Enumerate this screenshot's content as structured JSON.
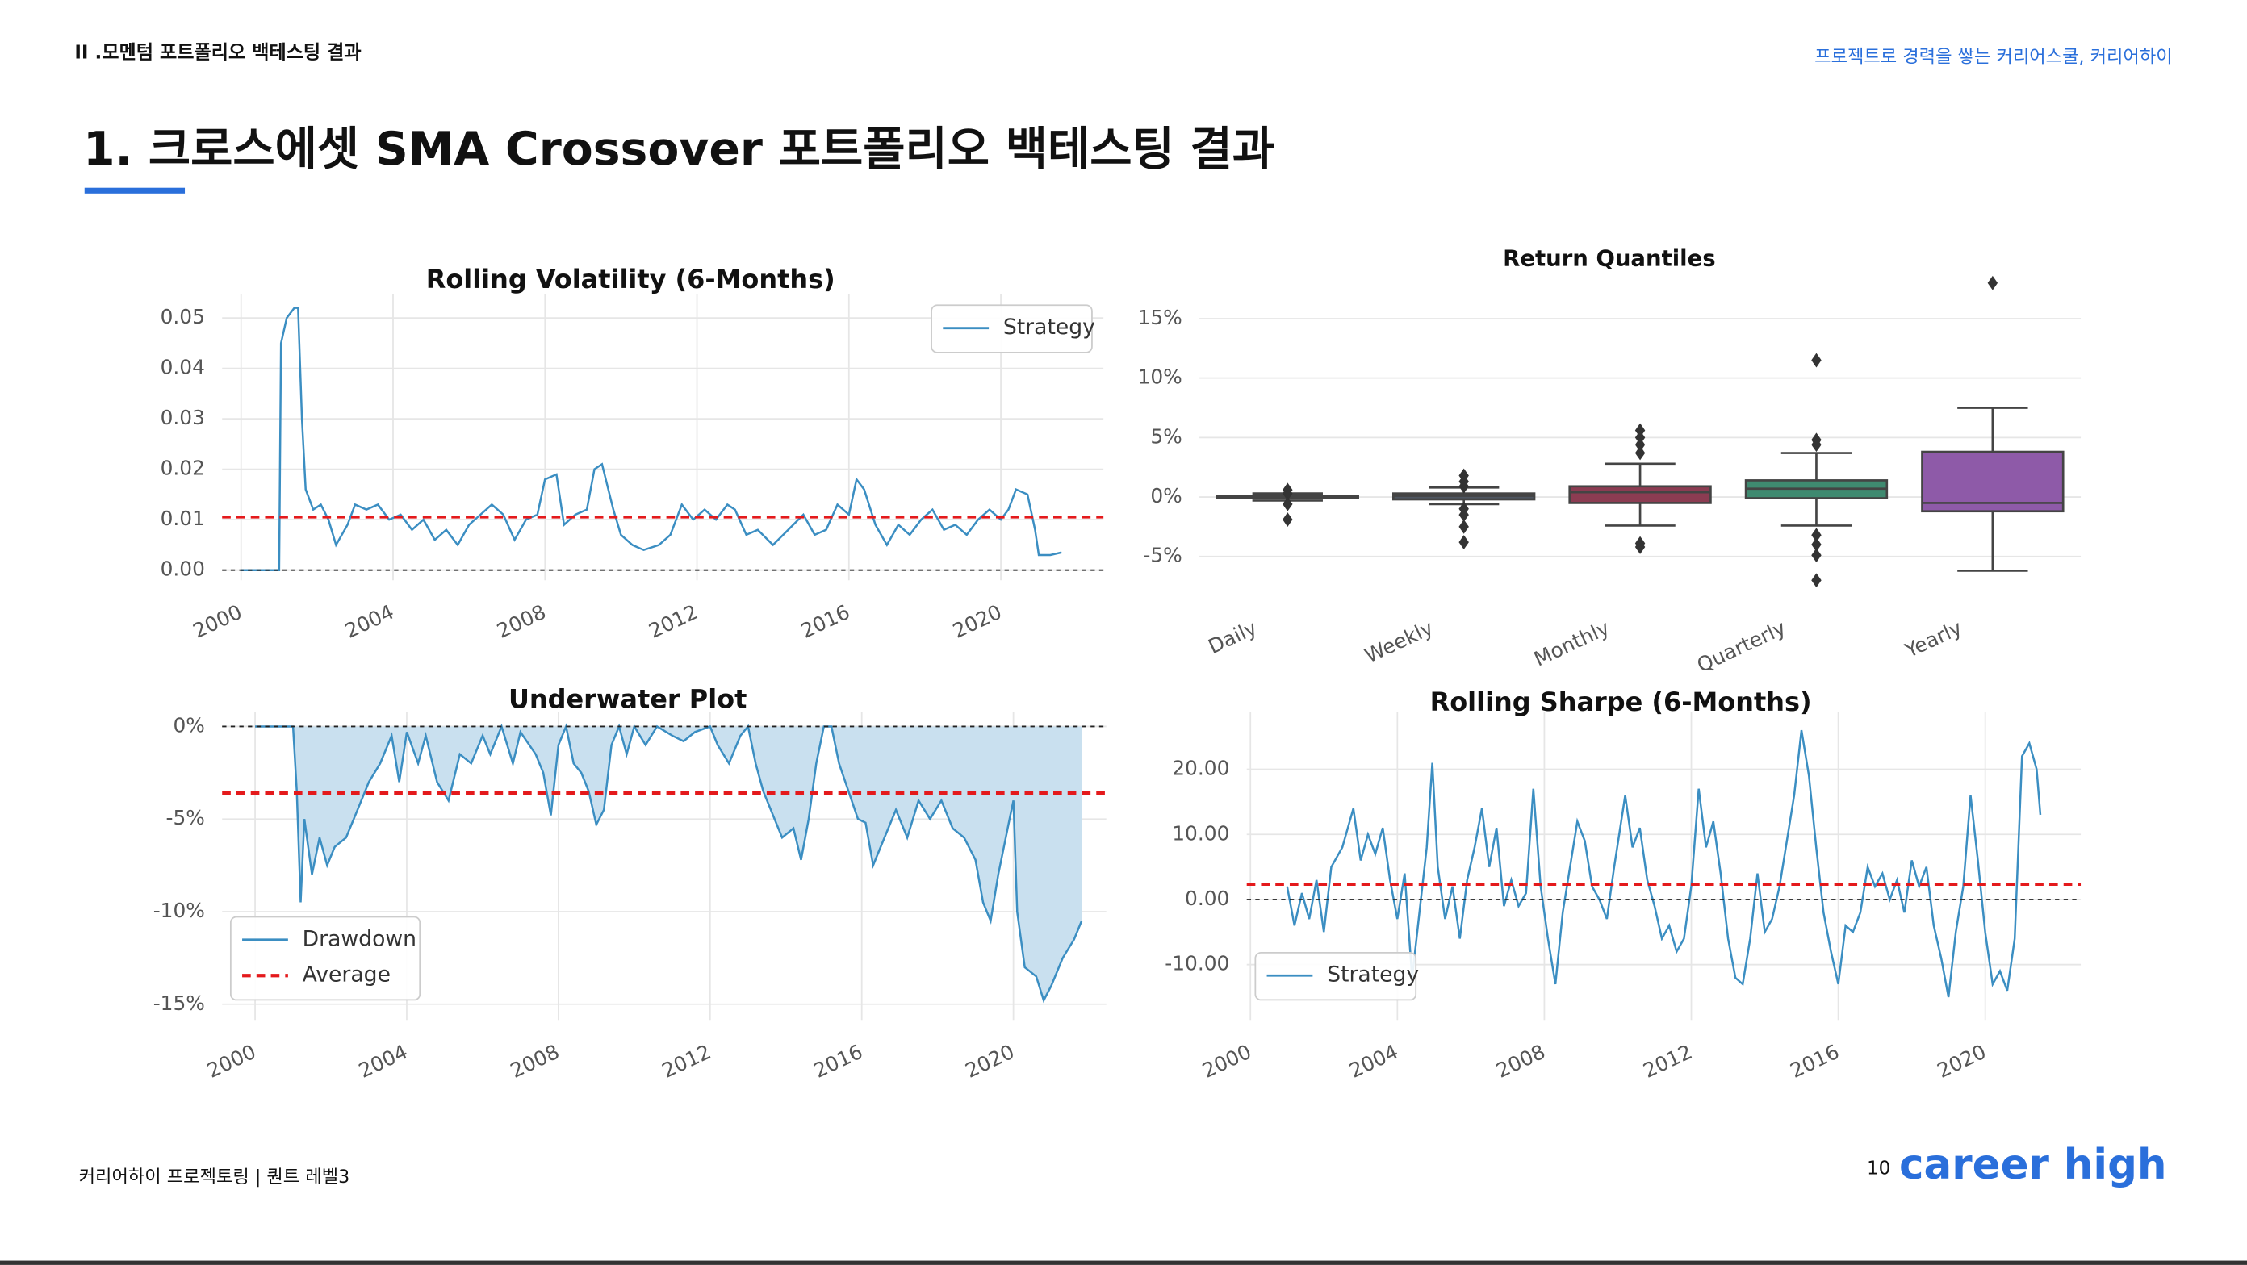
{
  "header": {
    "section": "II .모멘텀 포트폴리오 백테스팅 결과",
    "tagline": "프로젝트로 경력을 쌓는 커리어스쿨, 커리어하이",
    "title": "1. 크로스에셋 SMA Crossover 포트폴리오 백테스팅 결과"
  },
  "footer": {
    "text": "커리어하이 프로젝토링  |  퀀트 레벨3",
    "page": "10",
    "logo": "career high"
  },
  "chart_data": [
    {
      "type": "line",
      "title": "Rolling Volatility (6-Months)",
      "xlim": [
        1999.5,
        2022.7
      ],
      "xticks": [
        2000,
        2004,
        2008,
        2012,
        2016,
        2020
      ],
      "ylim": [
        -0.002,
        0.0548
      ],
      "yticks": [
        {
          "value": 0,
          "label": "0.00"
        },
        0.01,
        0.02,
        0.03,
        0.04,
        0.05
      ],
      "grid": true,
      "legend": "upper right",
      "x": [
        2000.0,
        2001.0,
        2001.05,
        2001.2,
        2001.4,
        2001.5,
        2001.6,
        2001.7,
        2001.9,
        2002.1,
        2002.3,
        2002.5,
        2002.8,
        2003.0,
        2003.3,
        2003.6,
        2003.9,
        2004.2,
        2004.5,
        2004.8,
        2005.1,
        2005.4,
        2005.7,
        2006.0,
        2006.3,
        2006.6,
        2006.9,
        2007.2,
        2007.5,
        2007.8,
        2008.0,
        2008.3,
        2008.5,
        2008.8,
        2009.1,
        2009.3,
        2009.5,
        2009.8,
        2010.0,
        2010.3,
        2010.6,
        2011.0,
        2011.3,
        2011.6,
        2011.9,
        2012.2,
        2012.5,
        2012.8,
        2013.0,
        2013.3,
        2013.6,
        2014.0,
        2014.4,
        2014.8,
        2015.1,
        2015.4,
        2015.7,
        2016.0,
        2016.2,
        2016.4,
        2016.7,
        2017.0,
        2017.3,
        2017.6,
        2017.9,
        2018.2,
        2018.5,
        2018.8,
        2019.1,
        2019.4,
        2019.7,
        2020.0,
        2020.2,
        2020.4,
        2020.7,
        2020.9,
        2021.0,
        2021.3,
        2021.6
      ],
      "series": [
        {
          "name": "Strategy",
          "color": "#3b8ec2",
          "values": [
            0,
            0,
            0.045,
            0.05,
            0.052,
            0.052,
            0.03,
            0.016,
            0.012,
            0.013,
            0.01,
            0.005,
            0.009,
            0.013,
            0.012,
            0.013,
            0.01,
            0.011,
            0.008,
            0.01,
            0.006,
            0.008,
            0.005,
            0.009,
            0.011,
            0.013,
            0.011,
            0.006,
            0.01,
            0.011,
            0.018,
            0.019,
            0.009,
            0.011,
            0.012,
            0.02,
            0.021,
            0.012,
            0.007,
            0.005,
            0.004,
            0.005,
            0.007,
            0.013,
            0.01,
            0.012,
            0.01,
            0.013,
            0.012,
            0.007,
            0.008,
            0.005,
            0.008,
            0.011,
            0.007,
            0.008,
            0.013,
            0.011,
            0.018,
            0.016,
            0.009,
            0.005,
            0.009,
            0.007,
            0.01,
            0.012,
            0.008,
            0.009,
            0.007,
            0.01,
            0.012,
            0.01,
            0.012,
            0.016,
            0.015,
            0.008,
            0.003,
            0.003,
            0.0035
          ]
        }
      ],
      "reference_lines": [
        {
          "value": 0.0105,
          "color": "#e41a1c"
        },
        {
          "value": 0,
          "color": "#222222"
        }
      ]
    },
    {
      "type": "box",
      "title": "Return Quantiles",
      "categories": [
        "Daily",
        "Weekly",
        "Monthly",
        "Quarterly",
        "Yearly"
      ],
      "ylim": [
        -7.6,
        18.3
      ],
      "yticks": [
        {
          "value": -5,
          "label": "-5%"
        },
        {
          "value": 0,
          "label": "0%"
        },
        {
          "value": 5,
          "label": "5%"
        },
        {
          "value": 10,
          "label": "10%"
        },
        {
          "value": 15,
          "label": "15%"
        }
      ],
      "grid": true,
      "colors": [
        "#4d5560",
        "#4d5560",
        "#8c3c52",
        "#3f8a70",
        "#8e5aa8"
      ],
      "boxes": [
        {
          "whisker_low": -0.3,
          "q1": -0.1,
          "median": 0,
          "q3": 0.1,
          "whisker_high": 0.3,
          "outliers": [
            0.6,
            0.3,
            -0.6,
            -1.9
          ]
        },
        {
          "whisker_low": -0.6,
          "q1": -0.2,
          "median": 0.1,
          "q3": 0.3,
          "whisker_high": 0.8,
          "outliers": [
            1.8,
            1.3,
            0.9,
            -1.0,
            -1.5,
            -2.5,
            -3.8
          ]
        },
        {
          "whisker_low": -2.4,
          "q1": -0.5,
          "median": 0.4,
          "q3": 0.9,
          "whisker_high": 2.8,
          "outliers": [
            5.6,
            5.0,
            4.4,
            3.7,
            -3.9,
            -4.2
          ]
        },
        {
          "whisker_low": -2.4,
          "q1": -0.1,
          "median": 0.7,
          "q3": 1.4,
          "whisker_high": 3.7,
          "outliers": [
            11.5,
            4.8,
            4.4,
            -3.2,
            -4.0,
            -4.9,
            -7.0
          ]
        },
        {
          "whisker_low": -6.2,
          "q1": -1.2,
          "median": -0.5,
          "q3": 3.8,
          "whisker_high": 7.5,
          "outliers": [
            18.0
          ]
        }
      ]
    },
    {
      "type": "area",
      "title": "Underwater Plot",
      "xlim": [
        1999.13,
        2022.45
      ],
      "xticks": [
        2000,
        2004,
        2008,
        2012,
        2016,
        2020
      ],
      "ylim": [
        -15.85,
        0.78
      ],
      "yticks": [
        {
          "value": -15,
          "label": "-15%"
        },
        {
          "value": -10,
          "label": "-10%"
        },
        {
          "value": -5,
          "label": "-5%"
        },
        {
          "value": 0,
          "label": "0%"
        }
      ],
      "grid": true,
      "legend": "lower left",
      "x": [
        2000,
        2001.0,
        2001.1,
        2001.2,
        2001.3,
        2001.5,
        2001.7,
        2001.9,
        2002.1,
        2002.4,
        2002.7,
        2003.0,
        2003.3,
        2003.6,
        2003.8,
        2004.0,
        2004.3,
        2004.5,
        2004.8,
        2005.1,
        2005.4,
        2005.7,
        2006.0,
        2006.2,
        2006.5,
        2006.8,
        2007.0,
        2007.4,
        2007.6,
        2007.8,
        2008.0,
        2008.2,
        2008.4,
        2008.6,
        2008.8,
        2009.0,
        2009.2,
        2009.4,
        2009.6,
        2009.8,
        2010.0,
        2010.3,
        2010.6,
        2011.0,
        2011.3,
        2011.6,
        2012.0,
        2012.2,
        2012.5,
        2012.8,
        2013.0,
        2013.2,
        2013.4,
        2013.7,
        2013.9,
        2014.2,
        2014.4,
        2014.6,
        2014.8,
        2015.0,
        2015.2,
        2015.4,
        2015.6,
        2015.9,
        2016.1,
        2016.3,
        2016.6,
        2016.9,
        2017.2,
        2017.5,
        2017.8,
        2018.1,
        2018.4,
        2018.7,
        2019.0,
        2019.2,
        2019.4,
        2019.6,
        2019.9,
        2020.0,
        2020.1,
        2020.3,
        2020.6,
        2020.8,
        2021.0,
        2021.3,
        2021.6,
        2021.8
      ],
      "series": [
        {
          "name": "Drawdown",
          "color": "#3b8ec2",
          "fill": "#c9e0ef",
          "values": [
            0,
            0,
            -3.5,
            -9.5,
            -5,
            -8,
            -6,
            -7.5,
            -6.5,
            -6,
            -4.5,
            -3,
            -2,
            -0.5,
            -3,
            -0.3,
            -2,
            -0.5,
            -3,
            -4,
            -1.5,
            -2,
            -0.5,
            -1.5,
            0,
            -2,
            -0.3,
            -1.5,
            -2.5,
            -4.8,
            -1,
            0,
            -2,
            -2.5,
            -3.5,
            -5.3,
            -4.5,
            -1,
            0,
            -1.5,
            0,
            -1,
            0,
            -0.5,
            -0.8,
            -0.3,
            0,
            -1,
            -2,
            -0.5,
            0,
            -2,
            -3.5,
            -5,
            -6,
            -5.5,
            -7.2,
            -5,
            -2,
            0,
            0,
            -2,
            -3.2,
            -5,
            -5.2,
            -7.5,
            -6,
            -4.5,
            -6,
            -4,
            -5,
            -4,
            -5.5,
            -6,
            -7.2,
            -9.5,
            -10.5,
            -8,
            -5,
            -4,
            -10,
            -13,
            -13.5,
            -14.8,
            -14,
            -12.5,
            -11.5,
            -10.5
          ]
        }
      ],
      "reference_lines": [
        {
          "name": "Average",
          "value": -3.6,
          "color": "#e41a1c",
          "width": 2.4
        },
        {
          "value": 0,
          "color": "#222222"
        }
      ]
    },
    {
      "type": "line",
      "title": "Rolling Sharpe (6-Months)",
      "xlim": [
        1999.9,
        2022.6
      ],
      "xticks": [
        2000,
        2004,
        2008,
        2012,
        2016,
        2020
      ],
      "ylim": [
        -18.5,
        28.8
      ],
      "yticks": [
        {
          "value": -10,
          "label": "-10.00"
        },
        {
          "value": 0,
          "label": "0.00"
        },
        {
          "value": 10,
          "label": "10.00"
        },
        {
          "value": 20,
          "label": "20.00"
        }
      ],
      "grid": true,
      "legend": "lower left",
      "x": [
        2001.0,
        2001.2,
        2001.4,
        2001.6,
        2001.8,
        2002.0,
        2002.2,
        2002.5,
        2002.8,
        2003.0,
        2003.2,
        2003.4,
        2003.6,
        2003.8,
        2004.0,
        2004.2,
        2004.4,
        2004.6,
        2004.8,
        2004.95,
        2005.1,
        2005.3,
        2005.5,
        2005.7,
        2005.9,
        2006.1,
        2006.3,
        2006.5,
        2006.7,
        2006.9,
        2007.1,
        2007.3,
        2007.5,
        2007.7,
        2007.9,
        2008.1,
        2008.3,
        2008.5,
        2008.7,
        2008.9,
        2009.1,
        2009.3,
        2009.5,
        2009.7,
        2009.9,
        2010.2,
        2010.4,
        2010.6,
        2010.8,
        2011.0,
        2011.2,
        2011.4,
        2011.6,
        2011.8,
        2012.0,
        2012.2,
        2012.4,
        2012.6,
        2012.8,
        2013.0,
        2013.2,
        2013.4,
        2013.6,
        2013.8,
        2014.0,
        2014.2,
        2014.4,
        2014.6,
        2014.8,
        2015.0,
        2015.2,
        2015.4,
        2015.6,
        2015.8,
        2016.0,
        2016.2,
        2016.4,
        2016.6,
        2016.8,
        2017.0,
        2017.2,
        2017.4,
        2017.6,
        2017.8,
        2018.0,
        2018.2,
        2018.4,
        2018.6,
        2018.8,
        2019.0,
        2019.2,
        2019.4,
        2019.6,
        2019.8,
        2020.0,
        2020.2,
        2020.4,
        2020.6,
        2020.8,
        2021.0,
        2021.2,
        2021.4,
        2021.5
      ],
      "series": [
        {
          "name": "Strategy",
          "color": "#3b8ec2",
          "values": [
            2,
            -4,
            1,
            -3,
            3,
            -5,
            5,
            8,
            14,
            6,
            10,
            7,
            11,
            3,
            -3,
            4,
            -12,
            -2,
            8,
            21,
            5,
            -3,
            2,
            -6,
            3,
            8,
            14,
            5,
            11,
            -1,
            3,
            -1,
            1,
            17,
            2,
            -6,
            -13,
            -2,
            5,
            12,
            9,
            2,
            0,
            -3,
            5,
            16,
            8,
            11,
            3,
            -1,
            -6,
            -4,
            -8,
            -6,
            2,
            17,
            8,
            12,
            4,
            -6,
            -12,
            -13,
            -6,
            4,
            -5,
            -3,
            2,
            9,
            16,
            26,
            19,
            8,
            -2,
            -8,
            -13,
            -4,
            -5,
            -2,
            5,
            2,
            4,
            0,
            3,
            -2,
            6,
            2,
            5,
            -4,
            -9,
            -15,
            -5,
            2,
            16,
            6,
            -5,
            -13,
            -11,
            -14,
            -6,
            22,
            24,
            20,
            13
          ]
        }
      ],
      "reference_lines": [
        {
          "value": 2.3,
          "color": "#e41a1c"
        },
        {
          "value": 0,
          "color": "#222222"
        }
      ]
    }
  ]
}
